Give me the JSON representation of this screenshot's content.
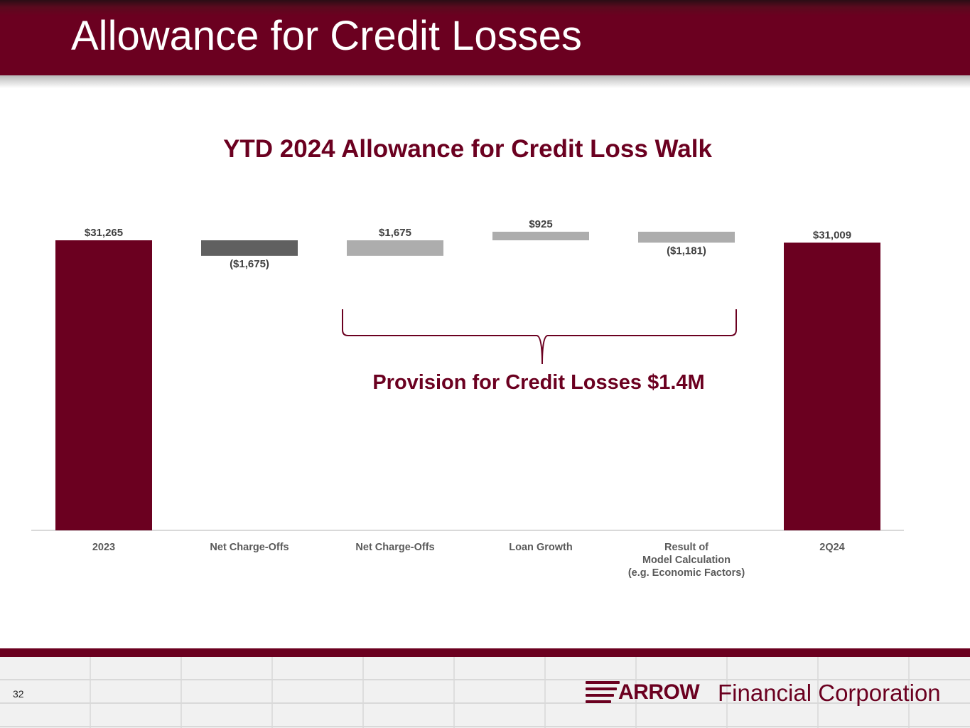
{
  "slide": {
    "title": "Allowance for Credit Losses",
    "page_number": "32",
    "brace_label": "Provision for Credit Losses $1.4M"
  },
  "logo": {
    "brand": "ARROW",
    "name": "Financial Corporation"
  },
  "colors": {
    "brand": "#6b0020",
    "dark_gray": "#606060",
    "light_gray": "#adadad",
    "footer": "#f1f1f1"
  },
  "chart_data": {
    "type": "bar",
    "subtype": "waterfall",
    "title": "YTD 2024 Allowance for Credit Loss Walk",
    "xlabel": "",
    "ylabel": "",
    "grid": false,
    "legend": "none",
    "ylim": [
      0,
      32500
    ],
    "bars": [
      {
        "category": "2023",
        "start": 0,
        "end": 31265,
        "label": "$31,265",
        "kind": "total",
        "color": "#6b0020"
      },
      {
        "category": "Net Charge-Offs",
        "start": 31265,
        "end": 29590,
        "label": "($1,675)",
        "kind": "decrease",
        "color": "#606060"
      },
      {
        "category": "Net Charge-Offs",
        "start": 29590,
        "end": 31265,
        "label": "$1,675",
        "kind": "increase",
        "color": "#adadad"
      },
      {
        "category": "Loan Growth",
        "start": 31265,
        "end": 32190,
        "label": "$925",
        "kind": "increase",
        "color": "#adadad"
      },
      {
        "category": "Result of\nModel Calculation\n(e.g. Economic Factors)",
        "start": 32190,
        "end": 31009,
        "label": "($1,181)",
        "kind": "decrease",
        "color": "#adadad"
      },
      {
        "category": "2Q24",
        "start": 0,
        "end": 31009,
        "label": "$31,009",
        "kind": "total",
        "color": "#6b0020"
      }
    ]
  }
}
